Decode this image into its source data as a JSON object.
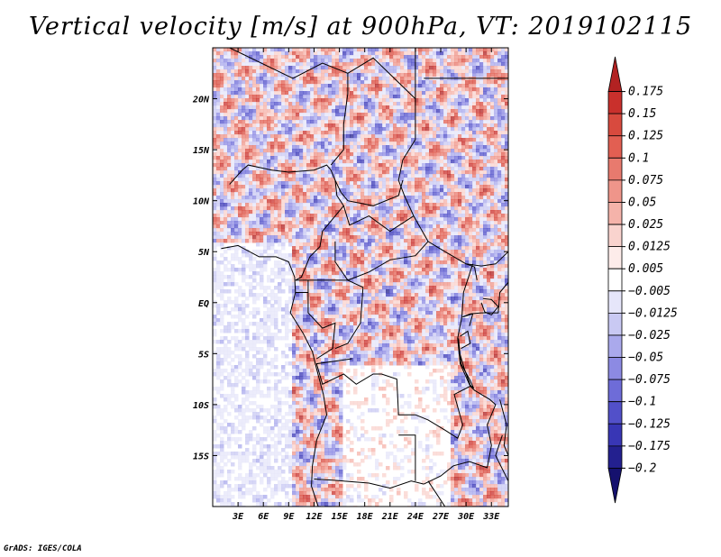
{
  "chart_data": {
    "type": "heatmap",
    "title": "Vertical velocity [m/s] at 900hPa, VT: 2019102115",
    "variable": "Vertical velocity",
    "units": "m/s",
    "level": "900hPa",
    "valid_time": "2019102115",
    "x_axis": {
      "tick_labels": [
        "3E",
        "6E",
        "9E",
        "12E",
        "15E",
        "18E",
        "21E",
        "24E",
        "27E",
        "30E",
        "33E"
      ],
      "tick_values": [
        3,
        6,
        9,
        12,
        15,
        18,
        21,
        24,
        27,
        30,
        33
      ],
      "range": [
        0,
        35
      ]
    },
    "y_axis": {
      "tick_labels": [
        "20N",
        "15N",
        "10N",
        "5N",
        "EQ",
        "5S",
        "10S",
        "15S"
      ],
      "tick_values": [
        20,
        15,
        10,
        5,
        0,
        -5,
        -10,
        -15
      ],
      "range": [
        -20,
        25
      ]
    },
    "colorbar": {
      "levels": [
        "0.175",
        "0.15",
        "0.125",
        "0.1",
        "0.075",
        "0.05",
        "0.025",
        "0.0125",
        "0.005",
        "-0.005",
        "-0.0125",
        "-0.025",
        "-0.05",
        "-0.075",
        "-0.1",
        "-0.125",
        "-0.175",
        "-0.2"
      ],
      "colors": [
        "#b22222",
        "#c9302c",
        "#d84a3e",
        "#e25f52",
        "#e87a6e",
        "#ef958a",
        "#f5b3aa",
        "#f9d3ce",
        "#fdecea",
        "#ffffff",
        "#e6e6fa",
        "#c9c9f3",
        "#aaa9ec",
        "#8c8ae3",
        "#6e6cd8",
        "#5250c9",
        "#3836b5",
        "#23208f",
        "#15116e"
      ]
    }
  },
  "credit": "GrADS: IGES/COLA"
}
